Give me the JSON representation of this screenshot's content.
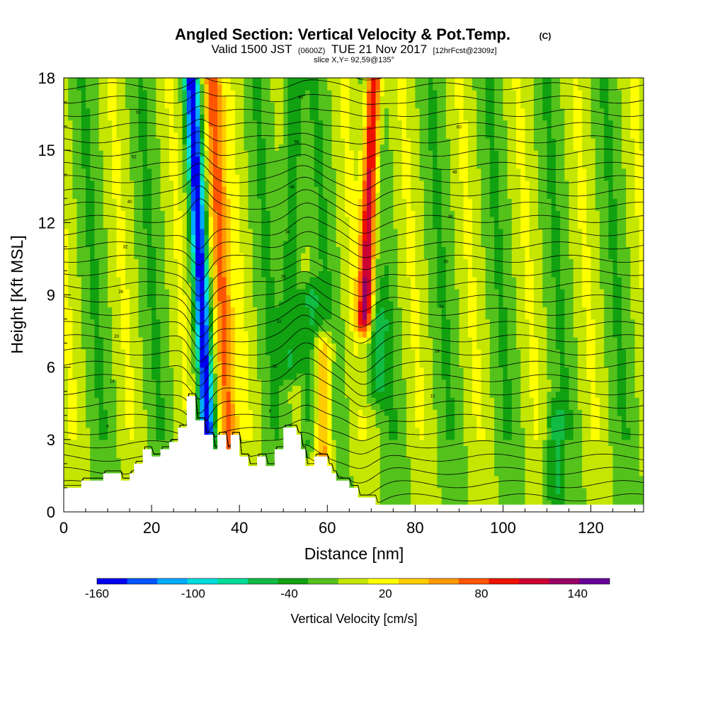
{
  "chart_data": {
    "type": "heatmap",
    "title": "Angled Section: Vertical Velocity & Pot.Temp.",
    "title_units": "(C)",
    "subtitle": {
      "valid": "Valid 1500 JST",
      "utc": "(0600Z)",
      "date": "TUE 21 Nov 2017",
      "forecast": "[12hrFcst@2309z]"
    },
    "slice_label": "slice X,Y= 92,59@135°",
    "xlabel": "Distance [nm]",
    "ylabel": "Height [Kft MSL]",
    "xlim": [
      0,
      132
    ],
    "ylim": [
      0,
      18
    ],
    "x_ticks": [
      0,
      20,
      40,
      60,
      80,
      100,
      120
    ],
    "y_ticks": [
      0,
      3,
      6,
      9,
      12,
      15,
      18
    ],
    "colorbar": {
      "label": "Vertical Velocity [cm/s]",
      "tick_labels": [
        "-160",
        "-100",
        "-40",
        "20",
        "80",
        "140"
      ],
      "tick_values": [
        -160,
        -100,
        -40,
        20,
        80,
        140
      ],
      "range": [
        -160,
        160
      ],
      "step": 20,
      "colors": [
        "#0000ee",
        "#0055ff",
        "#00aaff",
        "#00dddd",
        "#00dd99",
        "#11bb44",
        "#11a111",
        "#55c21c",
        "#c4e600",
        "#ffff00",
        "#ffcc00",
        "#ff9900",
        "#ff5500",
        "#ee1100",
        "#cc0033",
        "#990066",
        "#660099"
      ]
    },
    "vertical_velocity_features": [
      {
        "x": 31.5,
        "y_range": [
          3,
          18
        ],
        "w": -150
      },
      {
        "x": 36,
        "y_range": [
          2.5,
          18
        ],
        "w": 95
      },
      {
        "x": 52,
        "y_range": [
          6,
          18
        ],
        "w": -50
      },
      {
        "x": 56,
        "y_range": [
          3,
          9
        ],
        "w": -50
      },
      {
        "x": 59,
        "y_range": [
          2,
          7
        ],
        "w": 70
      },
      {
        "x": 69,
        "y_range": [
          8,
          18
        ],
        "w": 140
      },
      {
        "x": 72,
        "y_range": [
          5,
          8
        ],
        "w": -40
      },
      {
        "x": 112,
        "y_range": [
          0.5,
          4
        ],
        "w": -40
      }
    ],
    "terrain": [
      [
        0,
        1.0
      ],
      [
        4,
        1.0
      ],
      [
        4,
        1.3
      ],
      [
        9,
        1.3
      ],
      [
        9,
        1.6
      ],
      [
        13,
        1.6
      ],
      [
        13,
        1.3
      ],
      [
        15,
        1.3
      ],
      [
        15,
        1.6
      ],
      [
        16,
        1.6
      ],
      [
        16,
        2.0
      ],
      [
        18,
        2.0
      ],
      [
        18,
        2.6
      ],
      [
        20,
        2.6
      ],
      [
        20,
        2.3
      ],
      [
        22,
        2.3
      ],
      [
        22,
        2.6
      ],
      [
        24,
        2.6
      ],
      [
        24,
        2.9
      ],
      [
        26,
        2.9
      ],
      [
        26,
        3.5
      ],
      [
        28,
        3.5
      ],
      [
        28,
        4.8
      ],
      [
        30,
        4.8
      ],
      [
        30,
        3.8
      ],
      [
        32,
        3.8
      ],
      [
        32,
        3.2
      ],
      [
        34,
        3.2
      ],
      [
        34,
        2.6
      ],
      [
        35,
        2.6
      ],
      [
        35,
        3.2
      ],
      [
        37,
        3.2
      ],
      [
        37,
        2.6
      ],
      [
        38,
        2.6
      ],
      [
        38,
        3.2
      ],
      [
        40,
        3.2
      ],
      [
        40,
        2.3
      ],
      [
        42,
        2.3
      ],
      [
        42,
        1.9
      ],
      [
        44,
        1.9
      ],
      [
        44,
        2.3
      ],
      [
        46,
        2.3
      ],
      [
        46,
        1.9
      ],
      [
        48,
        1.9
      ],
      [
        48,
        2.6
      ],
      [
        50,
        2.6
      ],
      [
        50,
        3.5
      ],
      [
        53,
        3.5
      ],
      [
        53,
        3.2
      ],
      [
        54,
        3.2
      ],
      [
        54,
        2.6
      ],
      [
        55,
        2.6
      ],
      [
        55,
        1.9
      ],
      [
        57,
        1.9
      ],
      [
        57,
        2.3
      ],
      [
        60,
        2.3
      ],
      [
        60,
        1.9
      ],
      [
        61,
        1.9
      ],
      [
        61,
        1.6
      ],
      [
        62,
        1.6
      ],
      [
        62,
        1.3
      ],
      [
        65,
        1.3
      ],
      [
        65,
        1.0
      ],
      [
        67,
        1.0
      ],
      [
        67,
        0.6
      ],
      [
        71,
        0.6
      ],
      [
        71,
        0.3
      ],
      [
        132,
        0.3
      ]
    ],
    "theta_contour_interval_C": 2,
    "theta_contour_labels": [
      "6",
      "8",
      "10",
      "14",
      "16",
      "18",
      "20",
      "22",
      "24",
      "26",
      "28",
      "30",
      "32",
      "34",
      "38",
      "40",
      "46",
      "48",
      "52",
      "56",
      "60",
      "62",
      "66"
    ]
  }
}
